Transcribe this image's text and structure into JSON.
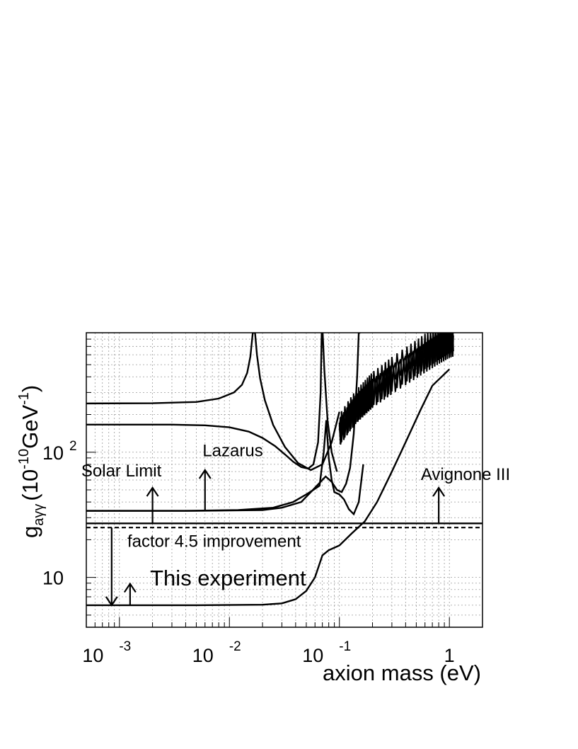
{
  "chart_data": {
    "type": "line",
    "title": "",
    "xlabel": "axion mass (eV)",
    "ylabel": {
      "main": "g",
      "subscript": "aγγ",
      "unit_open": "(10",
      "unit_exp1": "-10",
      "unit_mid": "GeV",
      "unit_exp2": "-1",
      "unit_close": ")"
    },
    "xscale": "log",
    "yscale": "log",
    "xlim": [
      0.0005,
      2.0
    ],
    "ylim": [
      4.0,
      900
    ],
    "grid": true,
    "x_ticks": [
      {
        "value": 0.001,
        "base": "10",
        "exp": "-3"
      },
      {
        "value": 0.01,
        "base": "10",
        "exp": "-2"
      },
      {
        "value": 0.1,
        "base": "10",
        "exp": "-1"
      },
      {
        "value": 1,
        "base": "1",
        "exp": ""
      }
    ],
    "y_ticks": [
      {
        "value": 10,
        "base": "10",
        "exp": ""
      },
      {
        "value": 100,
        "base": "10",
        "exp": "2"
      }
    ],
    "series": [
      {
        "name": "",
        "style": "solid",
        "x": [
          0.0005,
          0.002,
          0.005,
          0.008,
          0.011,
          0.013,
          0.0145,
          0.0155,
          0.0163,
          0.0168,
          0.0171,
          0.0178,
          0.019,
          0.021,
          0.025,
          0.032,
          0.042,
          0.055,
          0.07,
          0.085,
          0.1
        ],
        "y": [
          245,
          246,
          252,
          268,
          300,
          345,
          430,
          580,
          900,
          900,
          900,
          600,
          390,
          260,
          165,
          110,
          82,
          72,
          80,
          120,
          210
        ]
      },
      {
        "name": "",
        "style": "solid",
        "x": [
          0.0005,
          0.003,
          0.006,
          0.01,
          0.015,
          0.02,
          0.026,
          0.032,
          0.038,
          0.045,
          0.052,
          0.058,
          0.064,
          0.0675,
          0.069,
          0.0705,
          0.073,
          0.078,
          0.085,
          0.095
        ],
        "y": [
          166,
          166,
          164,
          158,
          146,
          130,
          112,
          96,
          84,
          76,
          74,
          80,
          120,
          300,
          900,
          900,
          450,
          180,
          100,
          70
        ]
      },
      {
        "name": "",
        "style": "solid",
        "x": [
          0.0005,
          0.005,
          0.02,
          0.03,
          0.045,
          0.06,
          0.075,
          0.085,
          0.095,
          0.105,
          0.115,
          0.125,
          0.135,
          0.145,
          0.15,
          0.155
        ],
        "y": [
          34,
          34,
          34.5,
          36,
          40,
          52,
          64,
          58,
          50,
          48,
          56,
          75,
          140,
          400,
          900,
          900
        ]
      },
      {
        "name": "",
        "style": "solid",
        "x": [
          0.0005,
          0.004,
          0.012,
          0.025,
          0.038,
          0.05,
          0.058,
          0.066,
          0.072,
          0.076,
          0.08,
          0.085,
          0.09,
          0.1,
          0.11,
          0.122,
          0.135,
          0.15,
          0.165
        ],
        "y": [
          34,
          34,
          34.5,
          36,
          40,
          46,
          50,
          54,
          100,
          180,
          90,
          60,
          48,
          46,
          42,
          35,
          32,
          40,
          80
        ]
      },
      {
        "name": "",
        "style": "jagged-band",
        "x": [
          0.1,
          0.12,
          0.14,
          0.16,
          0.18,
          0.2,
          0.25,
          0.3,
          0.4,
          0.5,
          0.6,
          0.7,
          0.8,
          0.9,
          1.0,
          1.1
        ],
        "y": [
          150,
          190,
          230,
          260,
          290,
          320,
          370,
          420,
          500,
          570,
          640,
          700,
          760,
          810,
          860,
          890
        ]
      },
      {
        "name": "",
        "style": "solid",
        "x": [
          0.0005,
          0.005,
          0.02,
          0.03,
          0.04,
          0.05,
          0.06,
          0.07,
          0.08,
          0.1,
          0.13,
          0.17,
          0.22,
          0.3,
          0.4,
          0.55,
          0.7,
          1.0
        ],
        "y": [
          6.0,
          6.0,
          6.05,
          6.2,
          6.7,
          7.8,
          10.0,
          15.0,
          16.5,
          18.0,
          22.5,
          28.0,
          40.0,
          70.0,
          120.0,
          220.0,
          340.0,
          460.0
        ]
      },
      {
        "name": "",
        "style": "solid",
        "x": [
          0.0005,
          2.0
        ],
        "y": [
          27.0,
          27.0
        ]
      },
      {
        "name": "",
        "style": "dashed",
        "x": [
          0.0005,
          2.0
        ],
        "y": [
          25.0,
          25.0
        ]
      }
    ],
    "annotations": {
      "lazarus": {
        "text": "Lazarus",
        "x": 0.0057,
        "y": 93
      },
      "solar_limit": {
        "text": "Solar Limit",
        "x": 0.00045,
        "y": 64
      },
      "avignone": {
        "text": "Avignone III",
        "x": 0.55,
        "y": 60
      },
      "factor": {
        "text": "factor 4.5 improvement",
        "x": 0.00118,
        "y": 17.5
      },
      "this_experiment": {
        "text": "This experiment",
        "x": 0.0019,
        "y": 8.6
      }
    },
    "arrows": [
      {
        "x": 0.002,
        "from_y": 27,
        "to_y": 52,
        "direction": "up"
      },
      {
        "x": 0.006,
        "from_y": 34,
        "to_y": 72,
        "direction": "up"
      },
      {
        "x": 0.8,
        "from_y": 27,
        "to_y": 52,
        "direction": "up"
      },
      {
        "x": 0.00125,
        "from_y": 6,
        "to_y": 8.9,
        "direction": "up"
      },
      {
        "x": 0.00085,
        "from_y": 25,
        "to_y": 6,
        "direction": "down"
      }
    ]
  }
}
